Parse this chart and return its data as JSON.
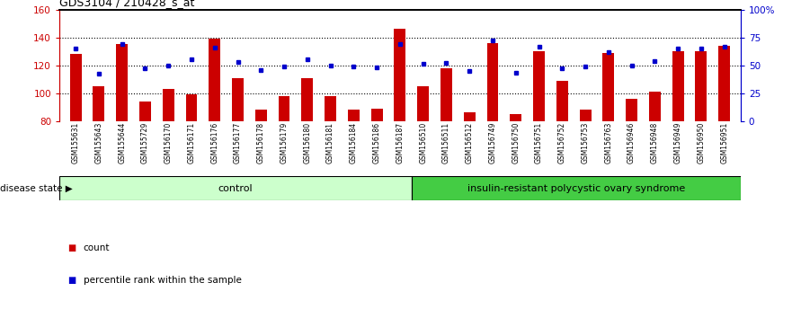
{
  "title": "GDS3104 / 210428_s_at",
  "samples": [
    "GSM155631",
    "GSM155643",
    "GSM155644",
    "GSM155729",
    "GSM156170",
    "GSM156171",
    "GSM156176",
    "GSM156177",
    "GSM156178",
    "GSM156179",
    "GSM156180",
    "GSM156181",
    "GSM156184",
    "GSM156186",
    "GSM156187",
    "GSM156510",
    "GSM156511",
    "GSM156512",
    "GSM156749",
    "GSM156750",
    "GSM156751",
    "GSM156752",
    "GSM156753",
    "GSM156763",
    "GSM156946",
    "GSM156948",
    "GSM156949",
    "GSM156950",
    "GSM156951"
  ],
  "red_values": [
    128,
    105,
    135,
    94,
    103,
    99,
    139,
    111,
    88,
    98,
    111,
    98,
    88,
    89,
    146,
    105,
    118,
    86,
    136,
    85,
    130,
    109,
    88,
    129,
    96,
    101,
    130,
    130,
    134
  ],
  "blue_values": [
    65,
    42,
    69,
    47,
    50,
    55,
    66,
    53,
    46,
    49,
    55,
    50,
    49,
    48,
    69,
    51,
    52,
    45,
    72,
    43,
    67,
    47,
    49,
    62,
    50,
    54,
    65,
    65,
    67
  ],
  "control_count": 15,
  "disease_label": "control",
  "disease_label2": "insulin-resistant polycystic ovary syndrome",
  "ylim_left": [
    80,
    160
  ],
  "ylim_right": [
    0,
    100
  ],
  "yticks_left": [
    80,
    100,
    120,
    140,
    160
  ],
  "yticks_right": [
    0,
    25,
    50,
    75,
    100
  ],
  "ytick_labels_right": [
    "0",
    "25",
    "50",
    "75",
    "100%"
  ],
  "red_color": "#CC0000",
  "blue_color": "#0000CC",
  "bar_width": 0.5,
  "plot_bg": "#FFFFFF",
  "control_fill": "#CCFFCC",
  "disease_fill": "#44CC44",
  "grid_color": "#000000",
  "hgrid_lines": [
    100,
    120,
    140
  ]
}
